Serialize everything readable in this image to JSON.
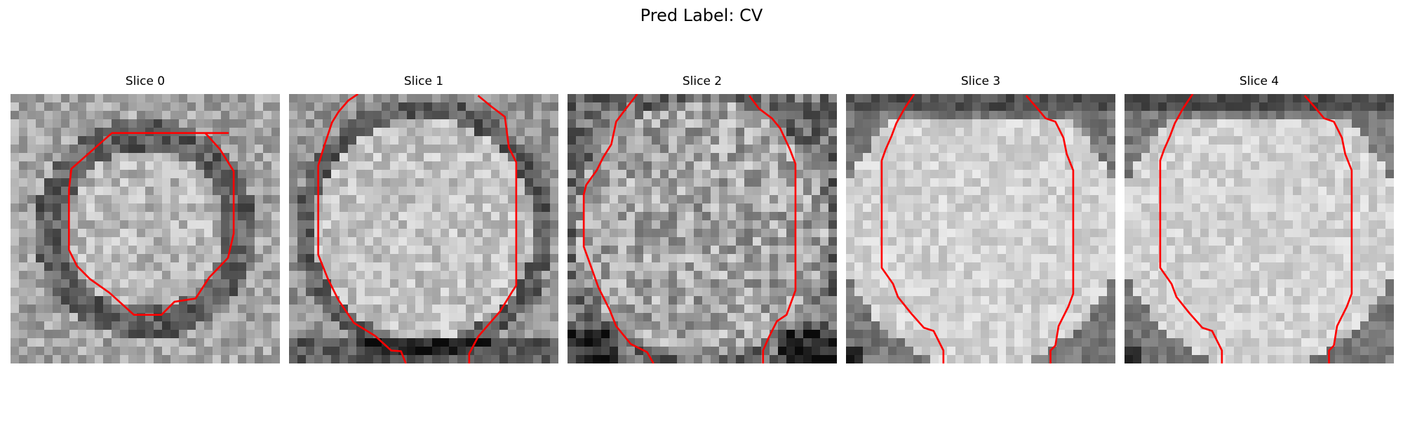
{
  "figure": {
    "title": "Pred Label: CV"
  },
  "contour_color": "#ff0000",
  "slices": [
    {
      "title": "Slice 0",
      "profile": "ring",
      "seed": 11,
      "contour": [
        [
          [
            26.8,
            4.8
          ],
          [
            12.5,
            4.8
          ],
          [
            10.0,
            7.0
          ],
          [
            7.5,
            9.2
          ],
          [
            7.2,
            11.8
          ],
          [
            7.2,
            19.2
          ],
          [
            8.2,
            21.2
          ],
          [
            9.8,
            22.8
          ],
          [
            12.2,
            24.5
          ],
          [
            15.2,
            27.2
          ],
          [
            18.6,
            27.2
          ],
          [
            20.2,
            25.6
          ],
          [
            22.8,
            25.2
          ],
          [
            24.5,
            22.6
          ],
          [
            26.8,
            20.2
          ],
          [
            27.5,
            17.2
          ],
          [
            27.5,
            9.5
          ],
          [
            25.8,
            6.8
          ],
          [
            24.0,
            4.8
          ]
        ]
      ],
      "closed": true
    },
    {
      "title": "Slice 1",
      "profile": "disc",
      "seed": 23,
      "contour": [
        [
          [
            8.5,
            0.0
          ],
          [
            7.3,
            0.8
          ],
          [
            6.1,
            2.2
          ],
          [
            5.3,
            3.5
          ],
          [
            4.4,
            6.2
          ],
          [
            3.6,
            8.8
          ],
          [
            3.6,
            19.8
          ],
          [
            4.8,
            22.8
          ],
          [
            6.1,
            25.4
          ],
          [
            8.0,
            28.2
          ],
          [
            10.6,
            29.8
          ],
          [
            12.6,
            31.6
          ],
          [
            13.8,
            31.7
          ],
          [
            14.4,
            33.2
          ]
        ],
        [
          [
            23.3,
            0.2
          ],
          [
            25.0,
            1.6
          ],
          [
            26.6,
            2.8
          ],
          [
            27.1,
            6.6
          ],
          [
            28.0,
            8.4
          ],
          [
            28.0,
            23.6
          ],
          [
            27.6,
            24.2
          ],
          [
            26.0,
            26.8
          ],
          [
            24.6,
            28.4
          ],
          [
            23.3,
            29.9
          ],
          [
            22.2,
            32.0
          ],
          [
            22.2,
            33.2
          ]
        ]
      ],
      "closed": false
    },
    {
      "title": "Slice 2",
      "profile": "flat",
      "seed": 37,
      "contour": [
        [
          [
            8.6,
            0.0
          ],
          [
            7.2,
            1.8
          ],
          [
            6.0,
            3.4
          ],
          [
            5.4,
            6.2
          ],
          [
            4.4,
            7.8
          ],
          [
            3.6,
            9.4
          ],
          [
            2.3,
            11.2
          ],
          [
            2.0,
            12.4
          ],
          [
            2.0,
            18.8
          ],
          [
            2.8,
            21.0
          ],
          [
            3.8,
            23.8
          ],
          [
            5.2,
            26.6
          ],
          [
            6.0,
            28.6
          ],
          [
            7.8,
            30.8
          ],
          [
            9.8,
            31.8
          ],
          [
            10.6,
            33.2
          ]
        ],
        [
          [
            22.4,
            0.2
          ],
          [
            23.6,
            1.8
          ],
          [
            25.2,
            3.0
          ],
          [
            26.2,
            4.2
          ],
          [
            27.4,
            6.8
          ],
          [
            28.1,
            8.6
          ],
          [
            28.1,
            24.2
          ],
          [
            27.0,
            27.2
          ],
          [
            25.8,
            28.0
          ],
          [
            24.8,
            30.0
          ],
          [
            24.1,
            31.6
          ],
          [
            24.1,
            33.2
          ]
        ]
      ],
      "closed": false
    },
    {
      "title": "Slice 3",
      "profile": "bright",
      "seed": 41,
      "contour": [
        [
          [
            8.4,
            0.0
          ],
          [
            7.2,
            1.8
          ],
          [
            6.2,
            3.6
          ],
          [
            5.6,
            5.2
          ],
          [
            4.9,
            6.8
          ],
          [
            4.4,
            8.2
          ],
          [
            4.4,
            21.4
          ],
          [
            5.8,
            23.4
          ],
          [
            6.4,
            25.0
          ],
          [
            8.0,
            27.0
          ],
          [
            9.6,
            28.8
          ],
          [
            10.8,
            29.2
          ],
          [
            12.0,
            31.6
          ],
          [
            12.0,
            33.2
          ]
        ],
        [
          [
            22.2,
            0.2
          ],
          [
            23.6,
            1.8
          ],
          [
            24.6,
            3.0
          ],
          [
            25.8,
            3.4
          ],
          [
            26.8,
            5.4
          ],
          [
            27.2,
            7.4
          ],
          [
            28.0,
            9.4
          ],
          [
            28.0,
            24.6
          ],
          [
            27.4,
            26.2
          ],
          [
            26.2,
            28.6
          ],
          [
            25.8,
            31.0
          ],
          [
            25.2,
            31.6
          ],
          [
            25.2,
            33.2
          ]
        ]
      ],
      "closed": false
    },
    {
      "title": "Slice 4",
      "profile": "bright",
      "seed": 53,
      "contour": [
        [
          [
            8.4,
            0.0
          ],
          [
            7.2,
            1.8
          ],
          [
            6.2,
            3.6
          ],
          [
            5.6,
            5.2
          ],
          [
            4.9,
            6.8
          ],
          [
            4.4,
            8.2
          ],
          [
            4.4,
            21.4
          ],
          [
            5.8,
            23.4
          ],
          [
            6.4,
            25.0
          ],
          [
            8.0,
            27.0
          ],
          [
            9.6,
            28.8
          ],
          [
            10.8,
            29.2
          ],
          [
            12.0,
            31.6
          ],
          [
            12.0,
            33.2
          ]
        ],
        [
          [
            22.2,
            0.2
          ],
          [
            23.6,
            1.8
          ],
          [
            24.6,
            3.0
          ],
          [
            25.8,
            3.4
          ],
          [
            26.8,
            5.4
          ],
          [
            27.2,
            7.4
          ],
          [
            28.0,
            9.4
          ],
          [
            28.0,
            24.6
          ],
          [
            27.4,
            26.2
          ],
          [
            26.2,
            28.6
          ],
          [
            25.8,
            31.0
          ],
          [
            25.2,
            31.6
          ],
          [
            25.2,
            33.2
          ]
        ]
      ],
      "closed": false
    }
  ]
}
